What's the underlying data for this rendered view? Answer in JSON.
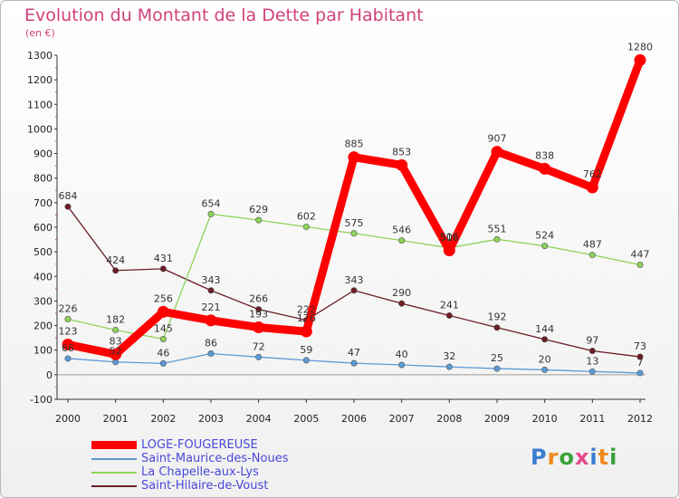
{
  "title": "Evolution du Montant de la Dette par Habitant",
  "subtitle": "(en €)",
  "logo": {
    "text": "Proxiti",
    "colors": [
      "#3a7fd0",
      "#f08a1c",
      "#3aa13a",
      "#e34a8a",
      "#3a7fd0",
      "#f08a1c",
      "#3aa13a"
    ]
  },
  "chart_data": {
    "type": "line",
    "x": [
      2000,
      2001,
      2002,
      2003,
      2004,
      2005,
      2006,
      2007,
      2008,
      2009,
      2010,
      2011,
      2012
    ],
    "ylim": [
      -100,
      1300
    ],
    "yticks": [
      -100,
      0,
      100,
      200,
      300,
      400,
      500,
      600,
      700,
      800,
      900,
      1000,
      1100,
      1200,
      1300
    ],
    "grid": false,
    "legend_position": "bottom",
    "series": [
      {
        "name": "Saint-Hilaire-de-Voust",
        "color": "#6b1c24",
        "values": [
          684,
          424,
          431,
          343,
          266,
          222,
          343,
          290,
          241,
          192,
          144,
          97,
          73
        ]
      },
      {
        "name": "La Chapelle-aux-Lys",
        "color": "#8dd35a",
        "values": [
          226,
          182,
          145,
          654,
          629,
          602,
          575,
          546,
          516,
          551,
          524,
          487,
          447
        ]
      },
      {
        "name": "Saint-Maurice-des-Noues",
        "color": "#5a9bd5",
        "values": [
          66,
          52,
          46,
          86,
          72,
          59,
          47,
          40,
          32,
          25,
          20,
          13,
          7
        ]
      },
      {
        "name": "LOGE-FOUGEREUSE",
        "color": "#ff0000",
        "values": [
          123,
          83,
          256,
          221,
          193,
          176,
          885,
          853,
          506,
          907,
          838,
          762,
          1280
        ]
      }
    ],
    "legend_order": [
      "LOGE-FOUGEREUSE",
      "Saint-Maurice-des-Noues",
      "La Chapelle-aux-Lys",
      "Saint-Hilaire-de-Voust"
    ]
  }
}
